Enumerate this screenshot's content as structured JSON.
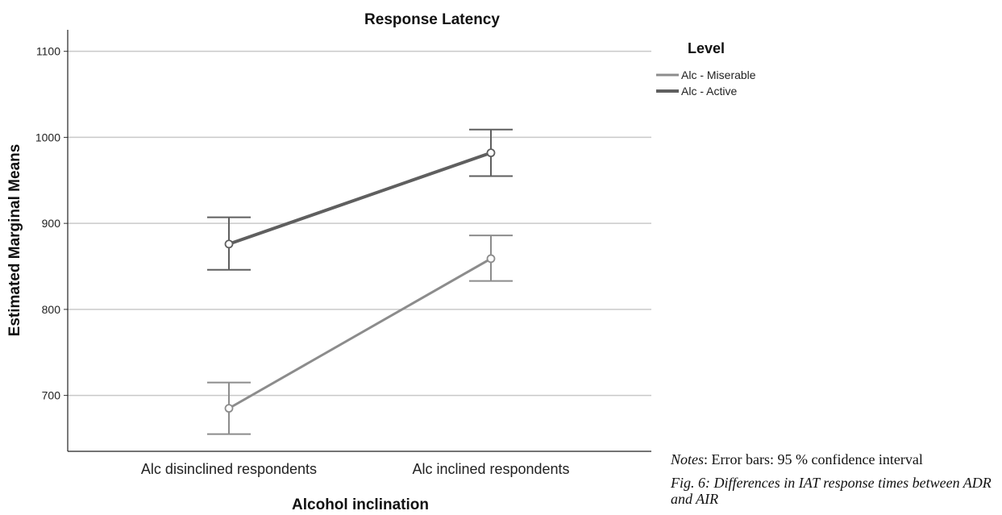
{
  "chart_data": {
    "type": "line",
    "title": "Response Latency",
    "xlabel": "Alcohol inclination",
    "ylabel": "Estimated Marginal Means",
    "categories": [
      "Alc disinclined respondents",
      "Alc inclined respondents"
    ],
    "ylim": [
      635,
      1125
    ],
    "yticks": [
      700,
      800,
      900,
      1000,
      1100
    ],
    "grid": true,
    "legend": {
      "title": "Level",
      "placement": "right"
    },
    "series": [
      {
        "name": "Alc - Miserable",
        "values": [
          685,
          859
        ],
        "ci_low": [
          655,
          833
        ],
        "ci_high": [
          715,
          886
        ],
        "color": "#8c8c8c"
      },
      {
        "name": "Alc - Active",
        "values": [
          876,
          982
        ],
        "ci_low": [
          846,
          955
        ],
        "ci_high": [
          907,
          1009
        ],
        "color": "#5f5f5f"
      }
    ]
  },
  "notes": {
    "label": "Notes",
    "text": ": Error bars: 95 % confidence interval",
    "caption": "Fig. 6: Differences in IAT response times between ADR and AIR"
  }
}
